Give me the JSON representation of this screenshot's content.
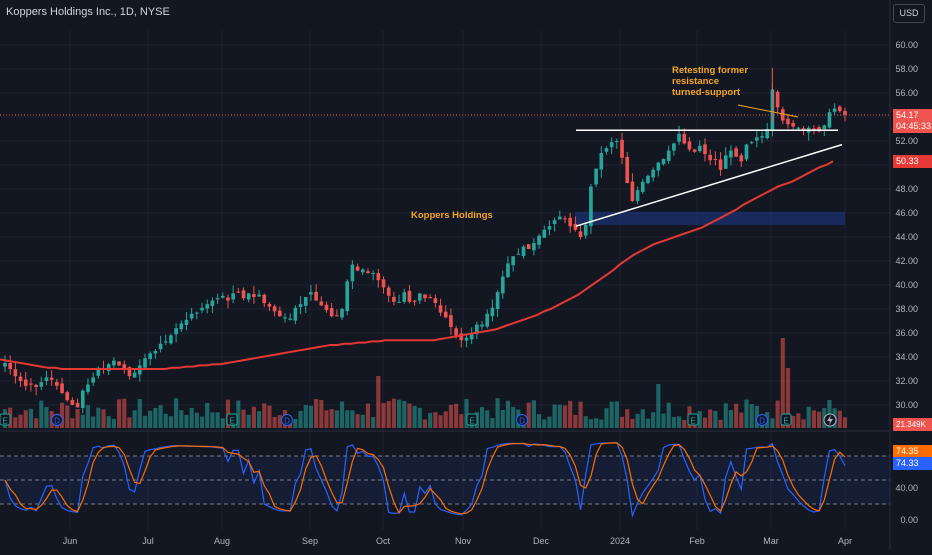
{
  "header": {
    "title": "Koppers Holdings Inc., 1D, NYSE",
    "currency_button": "USD"
  },
  "colors": {
    "background": "#131722",
    "up": "#26a69a",
    "down": "#ef5350",
    "ma": "#e53935",
    "annotation": "#f5a623",
    "k_line": "#2962ff",
    "d_line": "#ff6d00",
    "zone": "#1e3a8a"
  },
  "price_axis": {
    "ticks": [
      "60.00",
      "58.00",
      "56.00",
      "54.00",
      "52.00",
      "50.00",
      "48.00",
      "46.00",
      "44.00",
      "42.00",
      "40.00",
      "38.00",
      "36.00",
      "34.00",
      "32.00",
      "30.00"
    ]
  },
  "time_axis": {
    "ticks": [
      "Jun",
      "Jul",
      "Aug",
      "Sep",
      "Oct",
      "Nov",
      "Dec",
      "2024",
      "Feb",
      "Mar",
      "Apr"
    ]
  },
  "current_price": {
    "value": "54.17",
    "countdown": "04:45:33"
  },
  "ma_value": "50.33",
  "volume_label": "21.349K",
  "stoch_axis": {
    "ticks": [
      "40.00",
      "0.00"
    ]
  },
  "stoch_values": {
    "k": "74.35",
    "d": "74.33"
  },
  "annotations": {
    "pattern_note": [
      "Retesting former",
      "resistance",
      "turned-support"
    ],
    "symbol_note": "Koppers Holdings"
  },
  "event_markers": [
    "E",
    "D",
    "E",
    "D",
    "E",
    "D",
    "E",
    "D",
    "E",
    "D"
  ],
  "chart_data": {
    "type": "candlestick",
    "series": [
      {
        "name": "Price",
        "values": [
          33.5,
          33.0,
          32.4,
          32.0,
          31.6,
          31.7,
          31.5,
          31.9,
          32.3,
          32.1,
          31.6,
          31.0,
          30.4,
          30.0,
          29.8,
          31.2,
          31.7,
          32.3,
          33.1,
          33.0,
          33.4,
          33.7,
          33.3,
          33.0,
          32.4,
          32.7,
          33.3,
          33.9,
          34.3,
          34.5,
          35.1,
          35.3,
          35.8,
          36.4,
          36.8,
          37.1,
          37.6,
          37.7,
          38.1,
          38.4,
          38.7,
          38.9,
          39.1,
          38.7,
          39.3,
          39.4,
          38.9,
          39.3,
          39.0,
          39.2,
          38.5,
          38.2,
          37.8,
          37.4,
          37.3,
          37.2,
          38.1,
          38.4,
          39.0,
          39.4,
          38.7,
          38.3,
          37.9,
          37.4,
          37.4,
          38.0,
          40.3,
          41.7,
          41.2,
          41.3,
          41.0,
          41.0,
          40.4,
          39.8,
          39.1,
          38.6,
          38.6,
          39.4,
          38.6,
          38.6,
          39.3,
          38.9,
          38.9,
          38.5,
          37.7,
          37.3,
          36.5,
          35.8,
          35.4,
          35.6,
          35.9,
          36.7,
          36.7,
          37.6,
          38.1,
          39.4,
          40.7,
          41.8,
          42.4,
          42.6,
          43.2,
          43.0,
          43.5,
          44.1,
          44.6,
          44.9,
          45.4,
          45.7,
          45.5,
          44.9,
          44.6,
          44.0,
          45.0,
          48.2,
          49.7,
          51.0,
          51.4,
          51.9,
          52.0,
          50.6,
          48.5,
          47.0,
          47.9,
          48.6,
          49.1,
          49.6,
          50.2,
          50.5,
          51.2,
          51.8,
          52.6,
          51.8,
          51.3,
          51.1,
          51.6,
          50.9,
          50.4,
          50.5,
          49.6,
          50.8,
          51.2,
          50.7,
          50.3,
          51.7,
          51.9,
          52.3,
          52.4,
          53.0,
          56.3,
          54.8,
          53.7,
          53.4,
          53.2,
          53.1,
          52.9,
          53.1,
          53.0,
          52.8,
          53.3,
          54.4,
          54.7,
          54.5,
          54.2
        ]
      }
    ],
    "ma": [
      33.8,
      33.7,
      33.6,
      33.5,
      33.4,
      33.3,
      33.2,
      33.1,
      33.1,
      33.0,
      33.0,
      33.0,
      33.0,
      33.0,
      33.0,
      33.0,
      33.0,
      33.0,
      33.0,
      33.0,
      33.0,
      33.0,
      33.0,
      33.0,
      33.0,
      33.1,
      33.1,
      33.2,
      33.2,
      33.3,
      33.3,
      33.4,
      33.4,
      33.5,
      33.6,
      33.7,
      33.8,
      33.9,
      34.0,
      34.1,
      34.2,
      34.3,
      34.4,
      34.5,
      34.6,
      34.7,
      34.8,
      34.9,
      35.0,
      35.0,
      35.1,
      35.1,
      35.2,
      35.2,
      35.3,
      35.3,
      35.4,
      35.4,
      35.4,
      35.4,
      35.4,
      35.4,
      35.4,
      35.4,
      35.5,
      35.6,
      35.7,
      35.8,
      35.9,
      36.0,
      36.1,
      36.2,
      36.3,
      36.5,
      36.7,
      36.9,
      37.1,
      37.3,
      37.5,
      37.8,
      38.0,
      38.3,
      38.6,
      38.9,
      39.2,
      39.6,
      40.0,
      40.4,
      40.8,
      41.2,
      41.7,
      42.1,
      42.5,
      42.8,
      43.1,
      43.4,
      43.6,
      43.8,
      44.0,
      44.2,
      44.4,
      44.6,
      44.8,
      45.1,
      45.4,
      45.7,
      46.0,
      46.3,
      46.7,
      47.0,
      47.3,
      47.6,
      47.9,
      48.2,
      48.4,
      48.6,
      48.9,
      49.2,
      49.5,
      49.8,
      50.0,
      50.3
    ],
    "xlabel": "",
    "ylabel": "",
    "ylim": [
      29,
      61
    ]
  }
}
